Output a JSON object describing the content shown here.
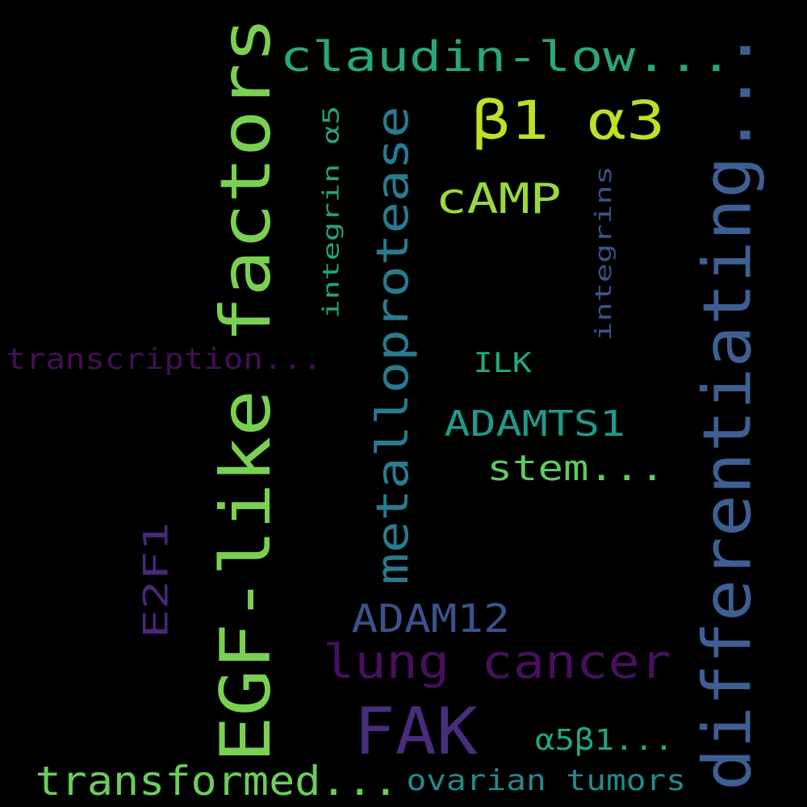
{
  "words": [
    {
      "text": "EGF-like factors",
      "color": "#7ad151",
      "orientation": "vertical"
    },
    {
      "text": "differentiating...",
      "color": "#3e5f93",
      "orientation": "vertical"
    },
    {
      "text": "claudin-low...",
      "color": "#2aa67f",
      "orientation": "horizontal"
    },
    {
      "text": "β1 α3",
      "color": "#c1df24",
      "orientation": "horizontal"
    },
    {
      "text": "metalloprotease",
      "color": "#297b8e",
      "orientation": "vertical"
    },
    {
      "text": "cAMP",
      "color": "#9bd93c",
      "orientation": "horizontal"
    },
    {
      "text": "integrin α5",
      "color": "#23a383",
      "orientation": "vertical"
    },
    {
      "text": "integrins",
      "color": "#3b5288",
      "orientation": "vertical"
    },
    {
      "text": "transcription...",
      "color": "#440f55",
      "orientation": "horizontal"
    },
    {
      "text": "ILK",
      "color": "#24a884",
      "orientation": "horizontal"
    },
    {
      "text": "ADAMTS1",
      "color": "#1f9a8a",
      "orientation": "horizontal"
    },
    {
      "text": "stem...",
      "color": "#5ec962",
      "orientation": "horizontal"
    },
    {
      "text": "E2F1",
      "color": "#482878",
      "orientation": "vertical"
    },
    {
      "text": "ADAM12",
      "color": "#3b528b",
      "orientation": "horizontal"
    },
    {
      "text": "lung cancer",
      "color": "#45105e",
      "orientation": "horizontal"
    },
    {
      "text": "FAK",
      "color": "#472d7b",
      "orientation": "horizontal"
    },
    {
      "text": "α5β1...",
      "color": "#21a685",
      "orientation": "horizontal"
    },
    {
      "text": "transformed...",
      "color": "#6ccd5a",
      "orientation": "horizontal"
    },
    {
      "text": "ovarian tumors",
      "color": "#238a8d",
      "orientation": "horizontal"
    }
  ]
}
